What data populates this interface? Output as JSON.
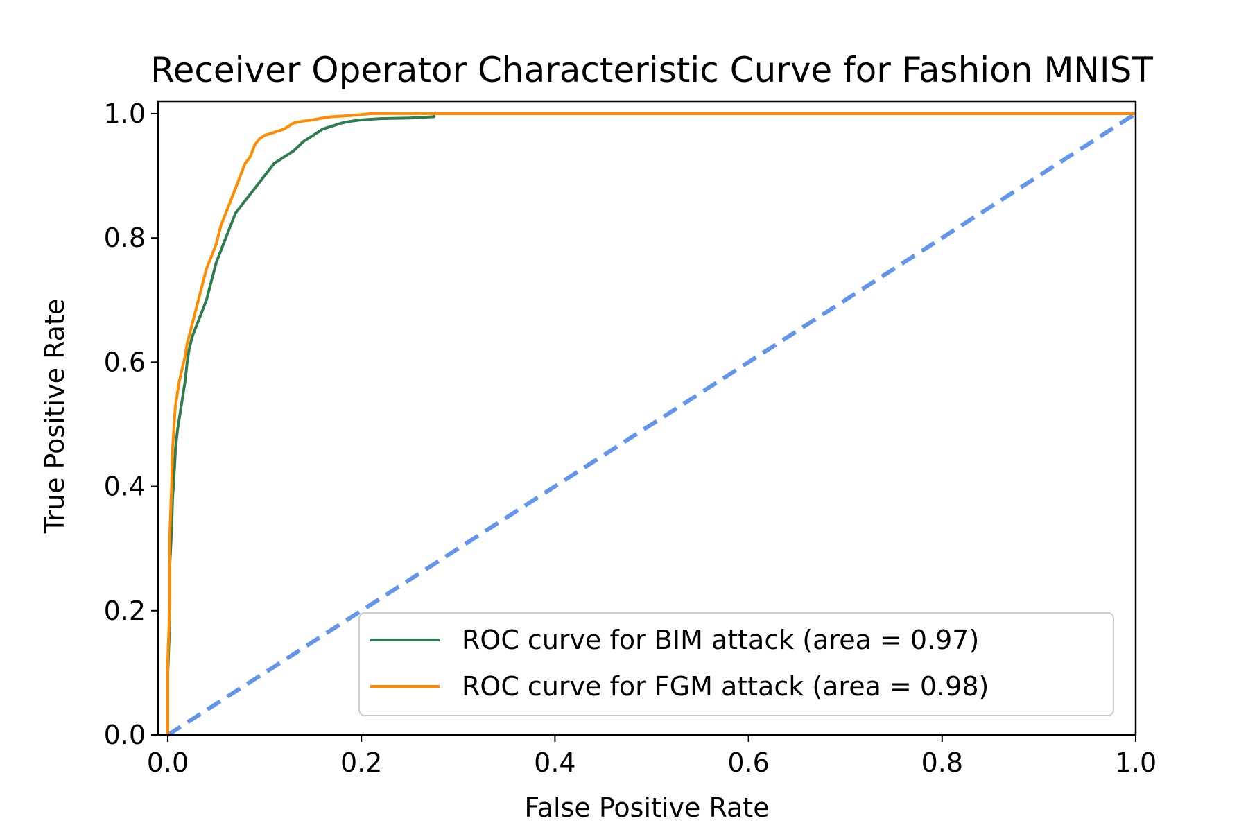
{
  "chart_data": {
    "type": "line",
    "title": "Receiver Operator Characteristic Curve for Fashion MNIST",
    "xlabel": "False Positive Rate",
    "ylabel": "True Positive Rate",
    "xlim": [
      -0.01,
      1.0
    ],
    "ylim": [
      0.0,
      1.02
    ],
    "xticks": [
      "0.0",
      "0.2",
      "0.4",
      "0.6",
      "0.8",
      "1.0"
    ],
    "yticks": [
      "0.0",
      "0.2",
      "0.4",
      "0.6",
      "0.8",
      "1.0"
    ],
    "grid": false,
    "legend_position": "lower-right",
    "series": [
      {
        "name": "ROC curve for BIM attack (area = 0.97)",
        "color": "#2e7d4f",
        "style": "solid",
        "x": [
          0.0,
          0.0,
          0.002,
          0.002,
          0.004,
          0.005,
          0.007,
          0.008,
          0.01,
          0.012,
          0.015,
          0.018,
          0.02,
          0.022,
          0.025,
          0.03,
          0.035,
          0.04,
          0.045,
          0.05,
          0.055,
          0.06,
          0.065,
          0.07,
          0.08,
          0.09,
          0.1,
          0.11,
          0.12,
          0.13,
          0.14,
          0.15,
          0.16,
          0.17,
          0.18,
          0.19,
          0.2,
          0.22,
          0.25,
          0.275,
          0.275,
          1.0
        ],
        "y": [
          0.0,
          0.1,
          0.18,
          0.27,
          0.33,
          0.38,
          0.43,
          0.46,
          0.49,
          0.51,
          0.54,
          0.57,
          0.6,
          0.62,
          0.64,
          0.66,
          0.68,
          0.7,
          0.73,
          0.76,
          0.78,
          0.8,
          0.82,
          0.84,
          0.86,
          0.88,
          0.9,
          0.92,
          0.93,
          0.94,
          0.955,
          0.965,
          0.975,
          0.98,
          0.985,
          0.988,
          0.99,
          0.992,
          0.993,
          0.995,
          1.0,
          1.0
        ]
      },
      {
        "name": "ROC curve for FGM attack (area = 0.98)",
        "color": "#ff8c00",
        "style": "solid",
        "x": [
          0.0,
          0.0,
          0.002,
          0.002,
          0.004,
          0.005,
          0.007,
          0.008,
          0.01,
          0.012,
          0.015,
          0.018,
          0.02,
          0.025,
          0.03,
          0.035,
          0.04,
          0.045,
          0.05,
          0.055,
          0.06,
          0.065,
          0.07,
          0.075,
          0.08,
          0.085,
          0.09,
          0.095,
          0.1,
          0.11,
          0.12,
          0.13,
          0.14,
          0.15,
          0.16,
          0.17,
          0.19,
          0.21,
          0.25,
          1.0
        ],
        "y": [
          0.0,
          0.12,
          0.21,
          0.32,
          0.4,
          0.46,
          0.51,
          0.53,
          0.55,
          0.57,
          0.59,
          0.61,
          0.63,
          0.66,
          0.69,
          0.72,
          0.75,
          0.77,
          0.79,
          0.82,
          0.84,
          0.86,
          0.88,
          0.9,
          0.92,
          0.93,
          0.95,
          0.96,
          0.965,
          0.97,
          0.975,
          0.985,
          0.988,
          0.99,
          0.993,
          0.995,
          0.997,
          1.0,
          1.0,
          1.0
        ]
      },
      {
        "name": "",
        "color": "#6495ed",
        "style": "dashed",
        "x": [
          0.0,
          1.0
        ],
        "y": [
          0.0,
          1.0
        ]
      }
    ]
  }
}
